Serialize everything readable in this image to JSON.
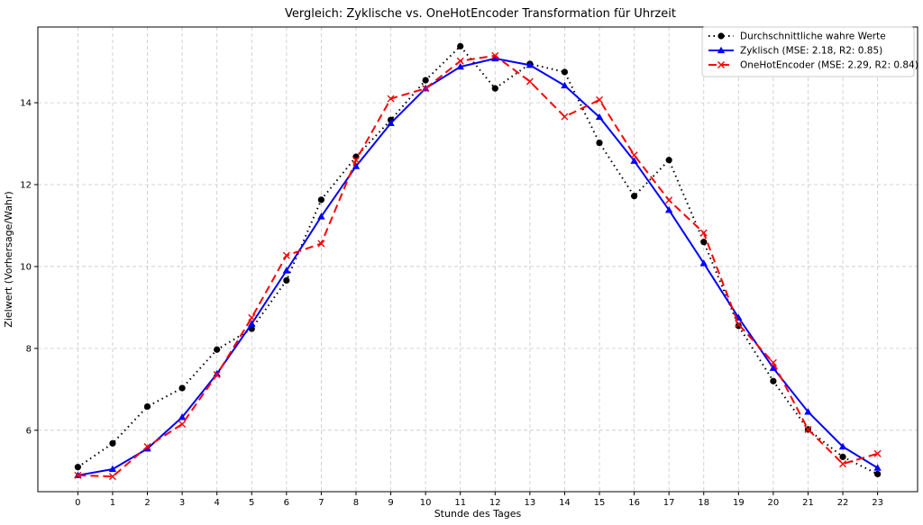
{
  "chart_data": {
    "type": "line",
    "title": "Vergleich: Zyklische vs. OneHotEncoder Transformation für Uhrzeit",
    "xlabel": "Stunde des Tages",
    "ylabel": "Zielwert (Vorhersage/Wahr)",
    "x": [
      0,
      1,
      2,
      3,
      4,
      5,
      6,
      7,
      8,
      9,
      10,
      11,
      12,
      13,
      14,
      15,
      16,
      17,
      18,
      19,
      20,
      21,
      22,
      23
    ],
    "xticks": [
      "0",
      "1",
      "2",
      "3",
      "4",
      "5",
      "6",
      "7",
      "8",
      "9",
      "10",
      "11",
      "12",
      "13",
      "14",
      "15",
      "16",
      "17",
      "18",
      "19",
      "20",
      "21",
      "22",
      "23"
    ],
    "yticks": [
      "6",
      "8",
      "10",
      "12",
      "14"
    ],
    "xlim": [
      -1.15,
      24.15
    ],
    "ylim": [
      4.5,
      15.85
    ],
    "grid": true,
    "legend_position": "top-right",
    "series": [
      {
        "name": "Durchschnittliche wahre Werte",
        "color": "#000000",
        "line_style": "dotted",
        "marker": "circle",
        "values": [
          5.1,
          5.68,
          6.58,
          7.03,
          7.97,
          8.48,
          9.66,
          11.63,
          12.68,
          13.58,
          14.55,
          15.38,
          14.35,
          14.95,
          14.75,
          13.02,
          11.72,
          12.6,
          10.6,
          8.55,
          7.2,
          6.02,
          5.35,
          4.93
        ]
      },
      {
        "name": "Zyklisch (MSE: 2.18, R2: 0.85)",
        "color": "#0000ff",
        "line_style": "solid",
        "marker": "triangle",
        "values": [
          4.9,
          5.05,
          5.55,
          6.32,
          7.38,
          8.6,
          9.9,
          11.22,
          12.45,
          13.5,
          14.35,
          14.88,
          15.08,
          14.92,
          14.42,
          13.65,
          12.58,
          11.38,
          10.08,
          8.75,
          7.52,
          6.45,
          5.6,
          5.08
        ]
      },
      {
        "name": "OneHotEncoder (MSE: 2.29, R2: 0.84)",
        "color": "#ff0000",
        "line_style": "dashed",
        "marker": "x",
        "values": [
          4.9,
          4.87,
          5.6,
          6.15,
          7.36,
          8.75,
          10.27,
          10.56,
          12.6,
          14.1,
          14.35,
          15.02,
          15.15,
          14.52,
          13.66,
          14.07,
          12.72,
          11.62,
          10.82,
          8.59,
          7.65,
          6.02,
          5.18,
          5.43
        ]
      }
    ]
  }
}
